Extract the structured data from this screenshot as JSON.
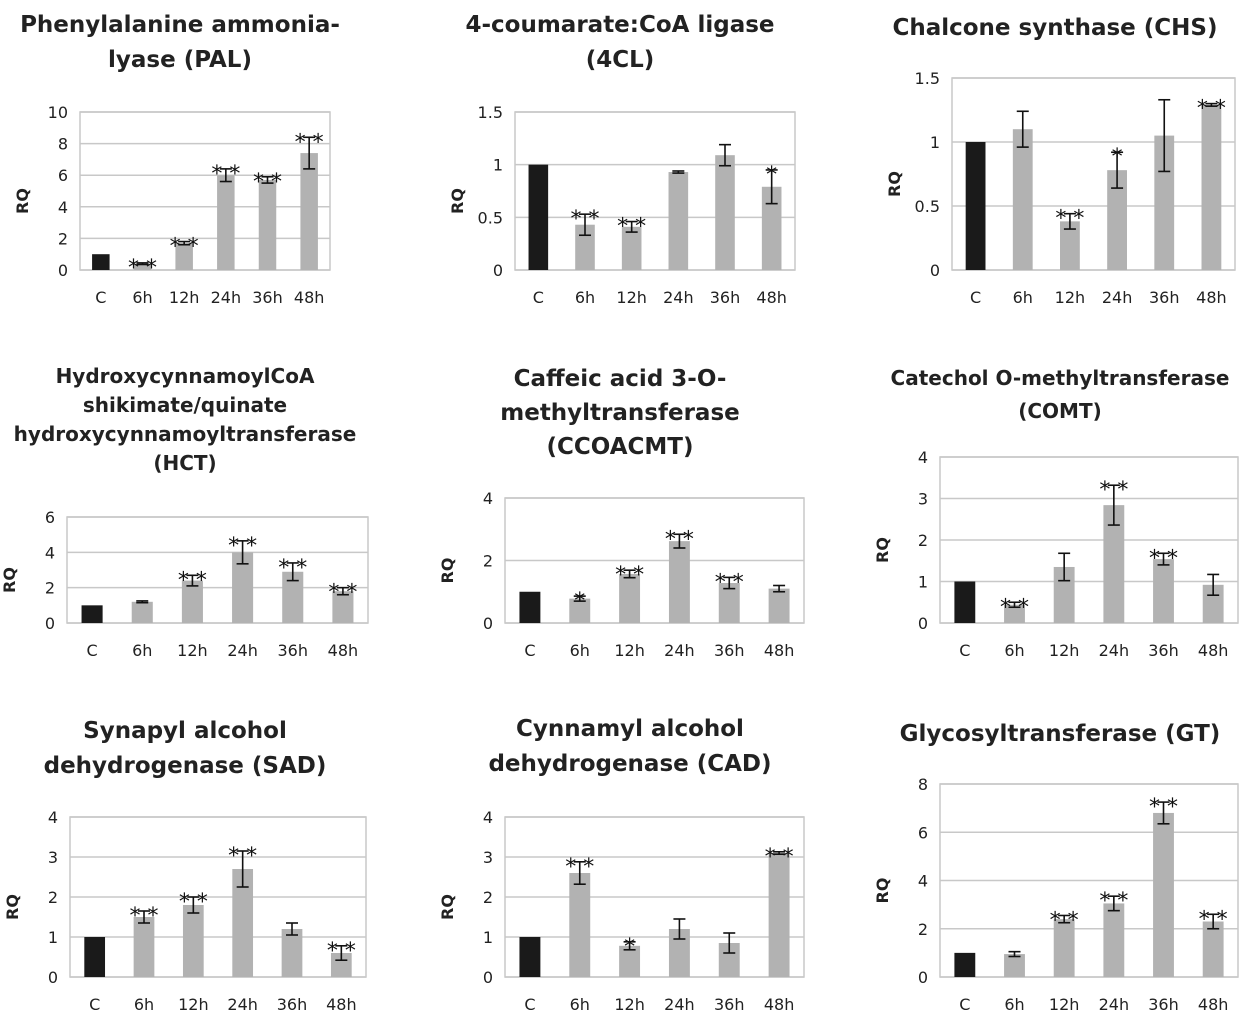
{
  "chart_data": [
    {
      "type": "bar",
      "title_lines": [
        "Phenylalanine ammonia-",
        "lyase (PAL)"
      ],
      "ylabel": "RQ",
      "categories": [
        "C",
        "6h",
        "12h",
        "24h",
        "36h",
        "48h"
      ],
      "values": [
        1.0,
        0.4,
        1.7,
        6.0,
        5.7,
        7.4
      ],
      "errors": [
        0,
        0.05,
        0.1,
        0.4,
        0.2,
        1.0
      ],
      "significance": [
        "",
        "**",
        "**",
        "**",
        "**",
        "**"
      ],
      "ylim": [
        0,
        10
      ],
      "yticks": [
        "0",
        "2",
        "4",
        "6",
        "8",
        "10"
      ],
      "grid": true,
      "colors": {
        "control": "#1a1a1a",
        "treated": "#b2b2b2"
      }
    },
    {
      "type": "bar",
      "title_lines": [
        "4-coumarate:CoA ligase",
        "(4CL)"
      ],
      "ylabel": "RQ",
      "categories": [
        "C",
        "6h",
        "12h",
        "24h",
        "36h",
        "48h"
      ],
      "values": [
        1.0,
        0.43,
        0.41,
        0.93,
        1.09,
        0.79
      ],
      "errors": [
        0,
        0.1,
        0.05,
        0.01,
        0.1,
        0.16
      ],
      "significance": [
        "",
        "**",
        "**",
        "",
        "",
        "*"
      ],
      "ylim": [
        0,
        1.5
      ],
      "yticks": [
        "0",
        "0.5",
        "1",
        "1.5"
      ],
      "grid": true,
      "colors": {
        "control": "#1a1a1a",
        "treated": "#b2b2b2"
      }
    },
    {
      "type": "bar",
      "title_lines": [
        "Chalcone synthase (CHS)"
      ],
      "ylabel": "RQ",
      "categories": [
        "C",
        "6h",
        "12h",
        "24h",
        "36h",
        "48h"
      ],
      "values": [
        1.0,
        1.1,
        0.38,
        0.78,
        1.05,
        1.29
      ],
      "errors": [
        0,
        0.14,
        0.06,
        0.14,
        0.28,
        0.01
      ],
      "significance": [
        "",
        "",
        "**",
        "*",
        "",
        "**"
      ],
      "ylim": [
        0,
        1.5
      ],
      "yticks": [
        "0",
        "0.5",
        "1",
        "1.5"
      ],
      "grid": true,
      "colors": {
        "control": "#1a1a1a",
        "treated": "#b2b2b2"
      }
    },
    {
      "type": "bar",
      "title_lines": [
        "HydroxycynnamoylCoA",
        "shikimate/quinate",
        "hydroxycynnamoyltransferase",
        "(HCT)"
      ],
      "ylabel": "RQ",
      "categories": [
        "C",
        "6h",
        "12h",
        "24h",
        "36h",
        "48h"
      ],
      "values": [
        1.0,
        1.2,
        2.4,
        4.0,
        2.9,
        1.8
      ],
      "errors": [
        0,
        0.05,
        0.3,
        0.65,
        0.5,
        0.2
      ],
      "significance": [
        "",
        "",
        "**",
        "**",
        "**",
        "**"
      ],
      "ylim": [
        0,
        6
      ],
      "yticks": [
        "0",
        "2",
        "4",
        "6"
      ],
      "grid": true,
      "colors": {
        "control": "#1a1a1a",
        "treated": "#b2b2b2"
      }
    },
    {
      "type": "bar",
      "title_lines": [
        "Caffeic acid 3-O-",
        "methyltransferase",
        "(CCOACMT)"
      ],
      "ylabel": "RQ",
      "categories": [
        "C",
        "6h",
        "12h",
        "24h",
        "36h",
        "48h"
      ],
      "values": [
        1.0,
        0.78,
        1.57,
        2.62,
        1.28,
        1.1
      ],
      "errors": [
        0,
        0.08,
        0.12,
        0.22,
        0.18,
        0.1
      ],
      "significance": [
        "",
        "*",
        "**",
        "**",
        "**",
        ""
      ],
      "ylim": [
        0,
        4
      ],
      "yticks": [
        "0",
        "2",
        "4"
      ],
      "grid": true,
      "colors": {
        "control": "#1a1a1a",
        "treated": "#b2b2b2"
      }
    },
    {
      "type": "bar",
      "title_lines": [
        "Catechol O-methyltransferase",
        "(COMT)"
      ],
      "ylabel": "RQ",
      "categories": [
        "C",
        "6h",
        "12h",
        "24h",
        "36h",
        "48h"
      ],
      "values": [
        1.0,
        0.44,
        1.35,
        2.84,
        1.54,
        0.92
      ],
      "errors": [
        0,
        0.06,
        0.33,
        0.48,
        0.14,
        0.25
      ],
      "significance": [
        "",
        "**",
        "",
        "**",
        "**",
        ""
      ],
      "ylim": [
        0,
        4
      ],
      "yticks": [
        "0",
        "1",
        "2",
        "3",
        "4"
      ],
      "grid": true,
      "colors": {
        "control": "#1a1a1a",
        "treated": "#b2b2b2"
      }
    },
    {
      "type": "bar",
      "title_lines": [
        "Synapyl alcohol",
        "dehydrogenase (SAD)"
      ],
      "ylabel": "RQ",
      "categories": [
        "C",
        "6h",
        "12h",
        "24h",
        "36h",
        "48h"
      ],
      "values": [
        1.0,
        1.5,
        1.8,
        2.7,
        1.2,
        0.6
      ],
      "errors": [
        0,
        0.15,
        0.2,
        0.45,
        0.15,
        0.18
      ],
      "significance": [
        "",
        "**",
        "**",
        "**",
        "",
        "**"
      ],
      "ylim": [
        0,
        4
      ],
      "yticks": [
        "0",
        "1",
        "2",
        "3",
        "4"
      ],
      "grid": true,
      "colors": {
        "control": "#1a1a1a",
        "treated": "#b2b2b2"
      }
    },
    {
      "type": "bar",
      "title_lines": [
        "Cynnamyl alcohol",
        "dehydrogenase (CAD)"
      ],
      "ylabel": "RQ",
      "categories": [
        "C",
        "6h",
        "12h",
        "24h",
        "36h",
        "48h"
      ],
      "values": [
        1.0,
        2.6,
        0.78,
        1.2,
        0.85,
        3.1
      ],
      "errors": [
        0,
        0.28,
        0.1,
        0.25,
        0.25,
        0.03
      ],
      "significance": [
        "",
        "**",
        "*",
        "",
        "",
        "**"
      ],
      "ylim": [
        0,
        4
      ],
      "yticks": [
        "0",
        "1",
        "2",
        "3",
        "4"
      ],
      "grid": true,
      "colors": {
        "control": "#1a1a1a",
        "treated": "#b2b2b2"
      }
    },
    {
      "type": "bar",
      "title_lines": [
        "Glycosyltransferase (GT)"
      ],
      "ylabel": "RQ",
      "categories": [
        "C",
        "6h",
        "12h",
        "24h",
        "36h",
        "48h"
      ],
      "values": [
        1.0,
        0.95,
        2.4,
        3.05,
        6.8,
        2.3
      ],
      "errors": [
        0,
        0.1,
        0.15,
        0.3,
        0.45,
        0.3
      ],
      "significance": [
        "",
        "",
        "**",
        "**",
        "**",
        "**"
      ],
      "ylim": [
        0,
        8
      ],
      "yticks": [
        "0",
        "2",
        "4",
        "6",
        "8"
      ],
      "grid": true,
      "colors": {
        "control": "#1a1a1a",
        "treated": "#b2b2b2"
      }
    }
  ]
}
